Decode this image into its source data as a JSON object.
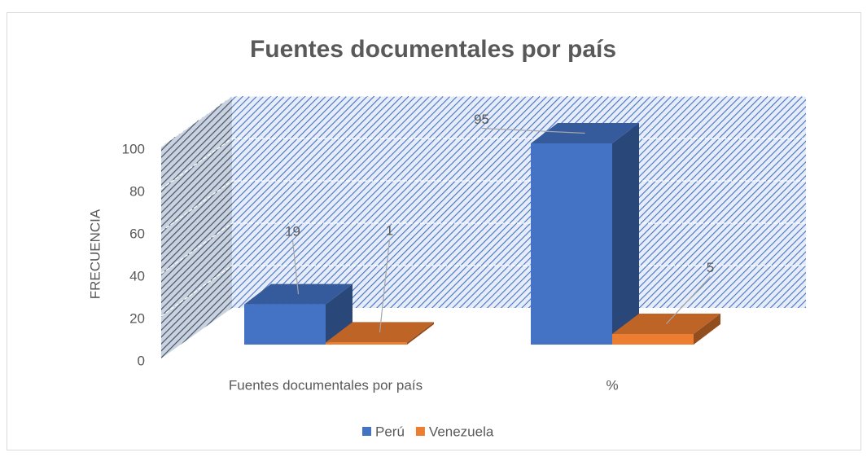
{
  "chart_data": {
    "type": "bar3d",
    "title": "Fuentes documentales por país",
    "y_label": "FRECUENCIA",
    "categories": [
      "Fuentes documentales por país",
      "%"
    ],
    "series": [
      {
        "name": "Perú",
        "color": "#4472c4",
        "values": [
          19,
          95
        ]
      },
      {
        "name": "Venezuela",
        "color": "#ed7d31",
        "values": [
          1,
          5
        ]
      }
    ],
    "ylim": [
      0,
      100
    ],
    "yticks": [
      0,
      20,
      40,
      60,
      80,
      100
    ],
    "grid": true,
    "legend": "bottom"
  }
}
